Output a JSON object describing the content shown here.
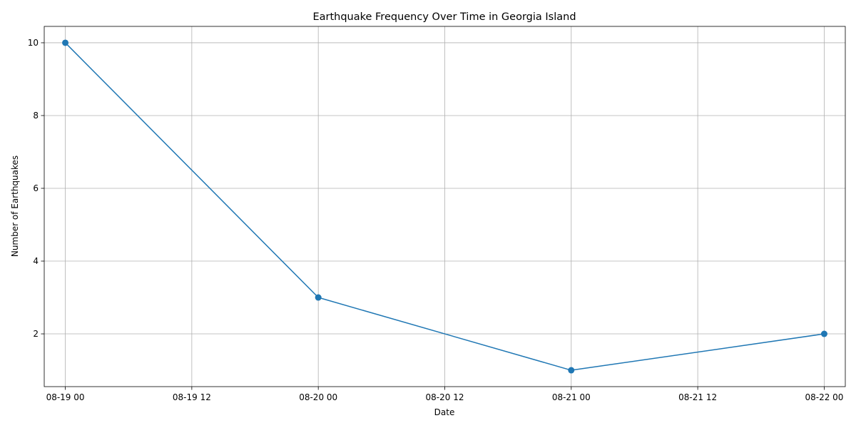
{
  "chart_data": {
    "type": "line",
    "title": "Earthquake Frequency Over Time in Georgia Island",
    "xlabel": "Date",
    "ylabel": "Number of Earthquakes",
    "x": [
      "2023-08-19 00:00",
      "2023-08-20 00:00",
      "2023-08-21 00:00",
      "2023-08-22 00:00"
    ],
    "series": [
      {
        "values": [
          10,
          3,
          1,
          2
        ],
        "color": "#1f77b4",
        "marker": "circle"
      }
    ],
    "xlim": [
      "2023-08-18 22:00",
      "2023-08-22 02:00"
    ],
    "ylim": [
      0.55,
      10.45
    ],
    "x_ticks": [
      {
        "value": "2023-08-19 00:00",
        "label": "08-19 00"
      },
      {
        "value": "2023-08-19 12:00",
        "label": "08-19 12"
      },
      {
        "value": "2023-08-20 00:00",
        "label": "08-20 00"
      },
      {
        "value": "2023-08-20 12:00",
        "label": "08-20 12"
      },
      {
        "value": "2023-08-21 00:00",
        "label": "08-21 00"
      },
      {
        "value": "2023-08-21 12:00",
        "label": "08-21 12"
      },
      {
        "value": "2023-08-22 00:00",
        "label": "08-22 00"
      }
    ],
    "y_ticks": [
      2,
      4,
      6,
      8,
      10
    ],
    "grid": true
  }
}
